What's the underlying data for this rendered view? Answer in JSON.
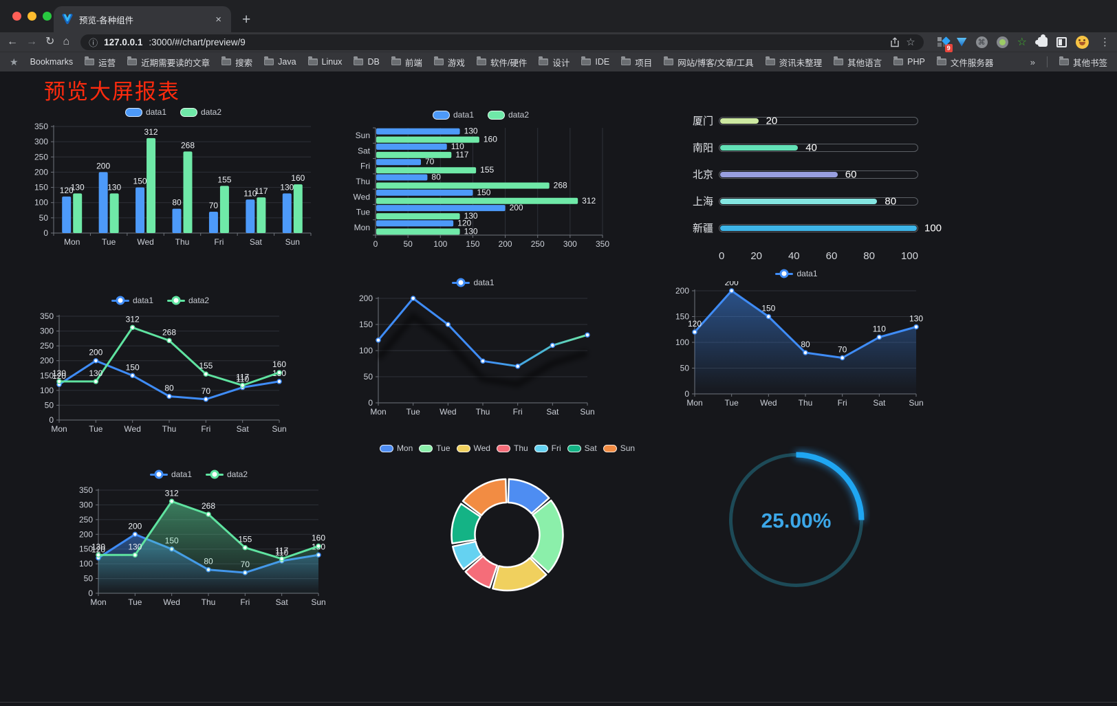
{
  "browser": {
    "tab": {
      "title": "预览-各种组件",
      "close_glyph": "×"
    },
    "new_tab_glyph": "+",
    "url_host": "127.0.0.1",
    "url_rest": ":3000/#/chart/preview/9",
    "nav": {
      "back": "←",
      "forward": "→",
      "reload": "↻",
      "home": "⌂",
      "info": "ⓘ"
    },
    "glyphs": {
      "star": "☆",
      "kebab": "⋮"
    },
    "extension_badge": "9",
    "extensions": [
      "pinned-extension-icon",
      "vue-devtools-icon",
      "command-circle-icon",
      "recorder-circle-icon",
      "green-star-icon",
      "puzzle-extensions-icon",
      "split-view-icon",
      "profile-avatar-icon"
    ]
  },
  "bookmarks": {
    "star_label": "Bookmarks",
    "items": [
      "运营",
      "近期需要读的文章",
      "搜索",
      "Java",
      "Linux",
      "DB",
      "前端",
      "游戏",
      "软件/硬件",
      "设计",
      "IDE",
      "项目",
      "网站/博客/文章/工具",
      "资讯未整理",
      "其他语言",
      "PHP",
      "文件服务器"
    ],
    "overflow_glyph": "»",
    "other_label": "其他书签"
  },
  "page": {
    "title": "预览大屏报表",
    "title_color": "#ff2b0e"
  },
  "chart_data": [
    {
      "id": "bar_grouped",
      "type": "bar",
      "categories": [
        "Mon",
        "Tue",
        "Wed",
        "Thu",
        "Fri",
        "Sat",
        "Sun"
      ],
      "series": [
        {
          "name": "data1",
          "color": "#4d9af9",
          "values": [
            120,
            200,
            150,
            80,
            70,
            110,
            130
          ]
        },
        {
          "name": "data2",
          "color": "#6fe9a8",
          "values": [
            130,
            130,
            312,
            268,
            155,
            117,
            160
          ]
        }
      ],
      "ylim": [
        0,
        350
      ],
      "yticks": [
        0,
        50,
        100,
        150,
        200,
        250,
        300,
        350
      ],
      "grid": true,
      "legend_position": "top",
      "value_labels": true
    },
    {
      "id": "hbar_grouped",
      "type": "hbar",
      "categories": [
        "Sun",
        "Sat",
        "Fri",
        "Thu",
        "Wed",
        "Tue",
        "Mon"
      ],
      "series": [
        {
          "name": "data1",
          "color": "#4d9af9",
          "values": [
            130,
            110,
            70,
            80,
            150,
            200,
            120
          ]
        },
        {
          "name": "data2",
          "color": "#6fe9a8",
          "values": [
            160,
            117,
            155,
            268,
            312,
            130,
            130
          ]
        }
      ],
      "xlim": [
        0,
        350
      ],
      "xticks": [
        0,
        50,
        100,
        150,
        200,
        250,
        300,
        350
      ],
      "grid": true,
      "legend_position": "top",
      "value_labels": true
    },
    {
      "id": "city_progress",
      "type": "progress_bars",
      "max": 100,
      "xticks": [
        0,
        20,
        40,
        60,
        80,
        100
      ],
      "rows": [
        {
          "label": "厦门",
          "value": 20,
          "color": "#cde9a1"
        },
        {
          "label": "南阳",
          "value": 40,
          "color": "#63e2b7"
        },
        {
          "label": "北京",
          "value": 60,
          "color": "#989fdf"
        },
        {
          "label": "上海",
          "value": 80,
          "color": "#84e6e1"
        },
        {
          "label": "新疆",
          "value": 100,
          "color": "#3eb5e8"
        }
      ]
    },
    {
      "id": "line_two",
      "type": "line",
      "categories": [
        "Mon",
        "Tue",
        "Wed",
        "Thu",
        "Fri",
        "Sat",
        "Sun"
      ],
      "series": [
        {
          "name": "data1",
          "color": "#3f8cf6",
          "values": [
            120,
            200,
            150,
            80,
            70,
            110,
            130
          ]
        },
        {
          "name": "data2",
          "color": "#5fe3a0",
          "values": [
            130,
            130,
            312,
            268,
            155,
            117,
            160
          ]
        }
      ],
      "ylim": [
        0,
        350
      ],
      "yticks": [
        0,
        50,
        100,
        150,
        200,
        250,
        300,
        350
      ],
      "grid": true,
      "legend_position": "top",
      "value_labels": true,
      "markers": true
    },
    {
      "id": "line_gradient",
      "type": "line",
      "categories": [
        "Mon",
        "Tue",
        "Wed",
        "Thu",
        "Fri",
        "Sat",
        "Sun"
      ],
      "series": [
        {
          "name": "data1",
          "color": "#3f8cf6",
          "values": [
            120,
            200,
            150,
            80,
            70,
            110,
            130
          ]
        }
      ],
      "gradient_line": {
        "from": "#3f8cf6",
        "mid": "#49b4d6",
        "to": "#6fe8a5"
      },
      "shadow": true,
      "ylim": [
        0,
        200
      ],
      "yticks": [
        0,
        50,
        100,
        150,
        200
      ],
      "grid": true,
      "legend_position": "top",
      "value_labels": false,
      "markers": true
    },
    {
      "id": "area_single",
      "type": "line",
      "area": true,
      "categories": [
        "Mon",
        "Tue",
        "Wed",
        "Thu",
        "Fri",
        "Sat",
        "Sun"
      ],
      "series": [
        {
          "name": "data1",
          "color": "#3f8cf6",
          "values": [
            120,
            200,
            150,
            80,
            70,
            110,
            130
          ]
        }
      ],
      "ylim": [
        0,
        200
      ],
      "yticks": [
        0,
        50,
        100,
        150,
        200
      ],
      "grid": true,
      "legend_position": "top",
      "value_labels": true,
      "markers": true
    },
    {
      "id": "area_two",
      "type": "line",
      "area": true,
      "categories": [
        "Mon",
        "Tue",
        "Wed",
        "Thu",
        "Fri",
        "Sat",
        "Sun"
      ],
      "series": [
        {
          "name": "data1",
          "color": "#3f8cf6",
          "values": [
            120,
            200,
            150,
            80,
            70,
            110,
            130
          ]
        },
        {
          "name": "data2",
          "color": "#5fe3a0",
          "values": [
            130,
            130,
            312,
            268,
            155,
            117,
            160
          ]
        }
      ],
      "ylim": [
        0,
        350
      ],
      "yticks": [
        0,
        50,
        100,
        150,
        200,
        250,
        300,
        350
      ],
      "grid": true,
      "legend_position": "top",
      "value_labels": true,
      "markers": true
    },
    {
      "id": "donut_week",
      "type": "donut",
      "legend_position": "top",
      "slices": [
        {
          "name": "Mon",
          "value": 120,
          "color": "#4e8df2"
        },
        {
          "name": "Tue",
          "value": 200,
          "color": "#8befaa"
        },
        {
          "name": "Wed",
          "value": 150,
          "color": "#f0d05e"
        },
        {
          "name": "Thu",
          "value": 80,
          "color": "#f56d79"
        },
        {
          "name": "Fri",
          "value": 70,
          "color": "#65d2f1"
        },
        {
          "name": "Sat",
          "value": 110,
          "color": "#14b385"
        },
        {
          "name": "Sun",
          "value": 130,
          "color": "#f28c43"
        }
      ]
    },
    {
      "id": "gauge_percent",
      "type": "gauge",
      "value": 25,
      "max": 100,
      "label": "25.00%",
      "color": "#1fa6f2",
      "track_color": "#1d4a57",
      "text_color": "#3ca7e8"
    }
  ]
}
